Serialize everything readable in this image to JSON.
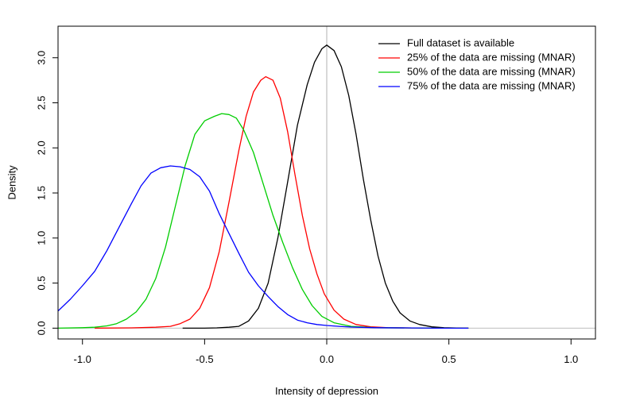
{
  "chart_data": {
    "type": "line",
    "title": "",
    "xlabel": "Intensity of depression",
    "ylabel": "Density",
    "xlim": [
      -1.1,
      1.1
    ],
    "ylim": [
      -0.12,
      3.35
    ],
    "x_ticks": [
      -1.0,
      -0.5,
      0.0,
      0.5,
      1.0
    ],
    "x_tick_labels": [
      "-1.0",
      "-0.5",
      "0.0",
      "0.5",
      "1.0"
    ],
    "y_ticks": [
      0.0,
      0.5,
      1.0,
      1.5,
      2.0,
      2.5,
      3.0
    ],
    "y_tick_labels": [
      "0.0",
      "0.5",
      "1.0",
      "1.5",
      "2.0",
      "2.5",
      "3.0"
    ],
    "reference_line": {
      "x": 0.0,
      "color": "#bebebe"
    },
    "grid": false,
    "legend_position": "top-right",
    "series": [
      {
        "name": "Full dataset is available",
        "color": "#000000",
        "points": [
          [
            -0.59,
            0.0
          ],
          [
            -0.5,
            0.0
          ],
          [
            -0.45,
            0.003
          ],
          [
            -0.4,
            0.01
          ],
          [
            -0.36,
            0.02
          ],
          [
            -0.32,
            0.08
          ],
          [
            -0.28,
            0.22
          ],
          [
            -0.24,
            0.5
          ],
          [
            -0.2,
            1.0
          ],
          [
            -0.16,
            1.62
          ],
          [
            -0.12,
            2.25
          ],
          [
            -0.08,
            2.7
          ],
          [
            -0.05,
            2.95
          ],
          [
            -0.02,
            3.1
          ],
          [
            0.0,
            3.14
          ],
          [
            0.03,
            3.08
          ],
          [
            0.06,
            2.9
          ],
          [
            0.09,
            2.58
          ],
          [
            0.12,
            2.15
          ],
          [
            0.15,
            1.65
          ],
          [
            0.18,
            1.2
          ],
          [
            0.21,
            0.8
          ],
          [
            0.24,
            0.5
          ],
          [
            0.27,
            0.3
          ],
          [
            0.3,
            0.17
          ],
          [
            0.34,
            0.08
          ],
          [
            0.38,
            0.04
          ],
          [
            0.43,
            0.015
          ],
          [
            0.48,
            0.005
          ],
          [
            0.53,
            0.002
          ],
          [
            0.58,
            0.0
          ]
        ]
      },
      {
        "name": "25% of the data are missing (MNAR)",
        "color": "#ff0000",
        "points": [
          [
            -0.95,
            0.0
          ],
          [
            -0.8,
            0.003
          ],
          [
            -0.7,
            0.01
          ],
          [
            -0.64,
            0.02
          ],
          [
            -0.6,
            0.05
          ],
          [
            -0.56,
            0.1
          ],
          [
            -0.52,
            0.22
          ],
          [
            -0.48,
            0.45
          ],
          [
            -0.44,
            0.85
          ],
          [
            -0.4,
            1.4
          ],
          [
            -0.36,
            1.97
          ],
          [
            -0.33,
            2.35
          ],
          [
            -0.3,
            2.62
          ],
          [
            -0.27,
            2.75
          ],
          [
            -0.25,
            2.79
          ],
          [
            -0.22,
            2.75
          ],
          [
            -0.19,
            2.55
          ],
          [
            -0.16,
            2.18
          ],
          [
            -0.13,
            1.7
          ],
          [
            -0.1,
            1.25
          ],
          [
            -0.07,
            0.88
          ],
          [
            -0.04,
            0.6
          ],
          [
            -0.01,
            0.38
          ],
          [
            0.03,
            0.2
          ],
          [
            0.07,
            0.1
          ],
          [
            0.12,
            0.04
          ],
          [
            0.18,
            0.015
          ],
          [
            0.25,
            0.005
          ],
          [
            0.35,
            0.002
          ],
          [
            0.45,
            0.0
          ],
          [
            0.58,
            0.0
          ]
        ]
      },
      {
        "name": "50% of the data are missing (MNAR)",
        "color": "#00cd00",
        "points": [
          [
            -1.1,
            0.0
          ],
          [
            -1.0,
            0.005
          ],
          [
            -0.95,
            0.01
          ],
          [
            -0.9,
            0.025
          ],
          [
            -0.86,
            0.05
          ],
          [
            -0.82,
            0.1
          ],
          [
            -0.78,
            0.18
          ],
          [
            -0.74,
            0.32
          ],
          [
            -0.7,
            0.55
          ],
          [
            -0.66,
            0.9
          ],
          [
            -0.62,
            1.35
          ],
          [
            -0.58,
            1.8
          ],
          [
            -0.54,
            2.15
          ],
          [
            -0.5,
            2.3
          ],
          [
            -0.46,
            2.35
          ],
          [
            -0.43,
            2.38
          ],
          [
            -0.4,
            2.37
          ],
          [
            -0.37,
            2.33
          ],
          [
            -0.34,
            2.2
          ],
          [
            -0.3,
            1.95
          ],
          [
            -0.26,
            1.6
          ],
          [
            -0.22,
            1.25
          ],
          [
            -0.18,
            0.95
          ],
          [
            -0.14,
            0.67
          ],
          [
            -0.1,
            0.43
          ],
          [
            -0.06,
            0.25
          ],
          [
            -0.02,
            0.13
          ],
          [
            0.03,
            0.06
          ],
          [
            0.1,
            0.02
          ],
          [
            0.2,
            0.005
          ],
          [
            0.35,
            0.002
          ],
          [
            0.45,
            0.0
          ],
          [
            0.58,
            0.0
          ]
        ]
      },
      {
        "name": "75% of the data are missing (MNAR)",
        "color": "#0000ff",
        "points": [
          [
            -1.1,
            0.19
          ],
          [
            -1.05,
            0.32
          ],
          [
            -1.0,
            0.47
          ],
          [
            -0.95,
            0.63
          ],
          [
            -0.9,
            0.86
          ],
          [
            -0.85,
            1.12
          ],
          [
            -0.8,
            1.38
          ],
          [
            -0.76,
            1.58
          ],
          [
            -0.72,
            1.72
          ],
          [
            -0.68,
            1.78
          ],
          [
            -0.64,
            1.8
          ],
          [
            -0.6,
            1.79
          ],
          [
            -0.56,
            1.76
          ],
          [
            -0.52,
            1.68
          ],
          [
            -0.48,
            1.52
          ],
          [
            -0.44,
            1.27
          ],
          [
            -0.4,
            1.05
          ],
          [
            -0.36,
            0.83
          ],
          [
            -0.32,
            0.62
          ],
          [
            -0.28,
            0.47
          ],
          [
            -0.24,
            0.35
          ],
          [
            -0.2,
            0.24
          ],
          [
            -0.16,
            0.15
          ],
          [
            -0.12,
            0.09
          ],
          [
            -0.08,
            0.06
          ],
          [
            -0.04,
            0.04
          ],
          [
            0.0,
            0.03
          ],
          [
            0.05,
            0.02
          ],
          [
            0.1,
            0.012
          ],
          [
            0.2,
            0.005
          ],
          [
            0.35,
            0.002
          ],
          [
            0.45,
            0.0
          ],
          [
            0.58,
            0.0
          ]
        ]
      }
    ]
  }
}
